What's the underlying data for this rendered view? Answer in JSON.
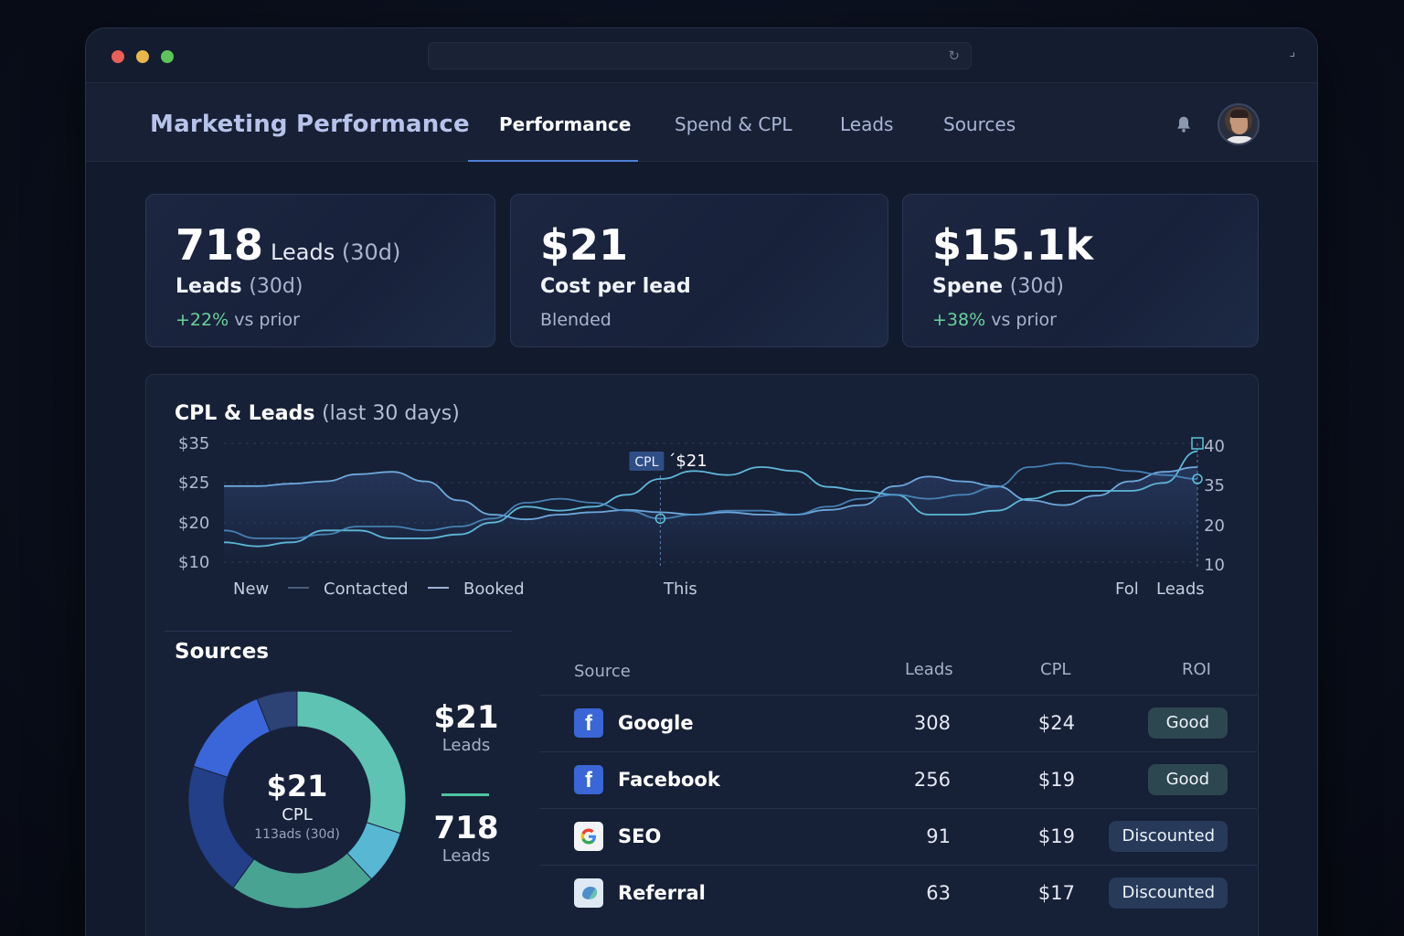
{
  "window": {
    "url": ""
  },
  "header": {
    "title": "Marketing Performance",
    "tabs": [
      {
        "label": "Performance",
        "active": true
      },
      {
        "label": "Spend & CPL",
        "active": false
      },
      {
        "label": "Leads",
        "active": false
      },
      {
        "label": "Sources",
        "active": false
      }
    ]
  },
  "kpis": [
    {
      "value": "718",
      "value_suffix": "Leads",
      "value_suffix_muted": "(30d)",
      "label": "Leads",
      "label_muted": "(30d)",
      "delta": "+22%",
      "delta_rest": " vs prior"
    },
    {
      "value": "$21",
      "label": "Cost per lead",
      "sub": "Blended"
    },
    {
      "value": "$15.1k",
      "label": "Spene",
      "label_muted": "(30d)",
      "delta": "+38%",
      "delta_rest": " vs prior"
    }
  ],
  "chart": {
    "title": "CPL & Leads",
    "title_muted": "(last 30 days)",
    "y_left_ticks": [
      "$35",
      "$25",
      "$20",
      "$10"
    ],
    "y_right_ticks": [
      "40",
      "35",
      "20",
      "10"
    ],
    "legend": [
      "New",
      "Contacted",
      "Booked"
    ],
    "x_labels": [
      "This",
      "Fol",
      "Leads"
    ],
    "tooltip_tag": "CPL",
    "tooltip_value": "´$21",
    "colors": {
      "line_primary": "#6fa8dc",
      "line_secondary": "#5fb6d8",
      "area": "#2a3d66"
    }
  },
  "chart_data": {
    "type": "line",
    "title": "CPL & Leads",
    "subtitle": "(last 30 days)",
    "x": [
      1,
      2,
      3,
      4,
      5,
      6,
      7,
      8,
      9,
      10,
      11,
      12,
      13,
      14,
      15,
      16,
      17,
      18,
      19,
      20,
      21,
      22,
      23,
      24,
      25,
      26,
      27,
      28,
      29,
      30
    ],
    "y_left_range": [
      10,
      35
    ],
    "y_right_range": [
      10,
      40
    ],
    "series": [
      {
        "name": "",
        "axis": "left",
        "values": [
          26,
          26,
          26.5,
          27,
          28.5,
          29,
          27,
          23,
          20,
          19,
          20,
          20.5,
          21,
          20.5,
          20,
          20.5,
          20,
          20,
          21,
          22,
          26,
          28,
          27,
          26,
          23,
          22,
          24,
          27,
          29,
          30
        ]
      },
      {
        "name": "",
        "axis": "right",
        "values": [
          15,
          14,
          15,
          18,
          18,
          16,
          16,
          17,
          20,
          24,
          23,
          24,
          27,
          31,
          33,
          32,
          34,
          33,
          29,
          28,
          27,
          22,
          22,
          23,
          26,
          28,
          28,
          28,
          30,
          38
        ]
      },
      {
        "name": "",
        "axis": "right",
        "values": [
          18,
          16,
          16,
          17,
          19,
          19,
          18,
          19,
          21,
          25,
          26,
          25,
          23,
          21,
          22,
          23,
          23,
          22,
          24,
          26,
          27,
          26,
          27,
          29,
          34,
          35,
          34,
          33,
          32,
          31
        ]
      }
    ],
    "markers": [
      {
        "x": 14,
        "label": "$21"
      },
      {
        "x": 30,
        "label": ""
      }
    ]
  },
  "sources": {
    "title": "Sources",
    "donut": {
      "value": "$21",
      "label": "CPL",
      "sub": "113ads (30d)",
      "segments": [
        {
          "value": 30,
          "color": "#5fc3b3"
        },
        {
          "value": 8,
          "color": "#58b8d4"
        },
        {
          "value": 22,
          "color": "#49a393"
        },
        {
          "value": 20,
          "color": "#223f88"
        },
        {
          "value": 14,
          "color": "#3b66d9"
        },
        {
          "value": 6,
          "color": "#2d4275"
        }
      ]
    },
    "side_stats": [
      {
        "value": "$21",
        "label": "Leads"
      },
      {
        "value": "718",
        "label": "Leads"
      }
    ],
    "table": {
      "headers": {
        "source": "Source",
        "leads": "Leads",
        "cpl": "CPL",
        "roi": "ROI"
      },
      "rows": [
        {
          "icon": "facebook-icon",
          "name": "Google",
          "leads": "308",
          "cpl": "$24",
          "roi": "Good"
        },
        {
          "icon": "facebook-icon",
          "name": "Facebook",
          "leads": "256",
          "cpl": "$19",
          "roi": "Good"
        },
        {
          "icon": "google-icon",
          "name": "SEO",
          "leads": "91",
          "cpl": "$19",
          "roi": "Discounted"
        },
        {
          "icon": "referral-icon",
          "name": "Referral",
          "leads": "63",
          "cpl": "$17",
          "roi": "Discounted"
        }
      ]
    }
  }
}
